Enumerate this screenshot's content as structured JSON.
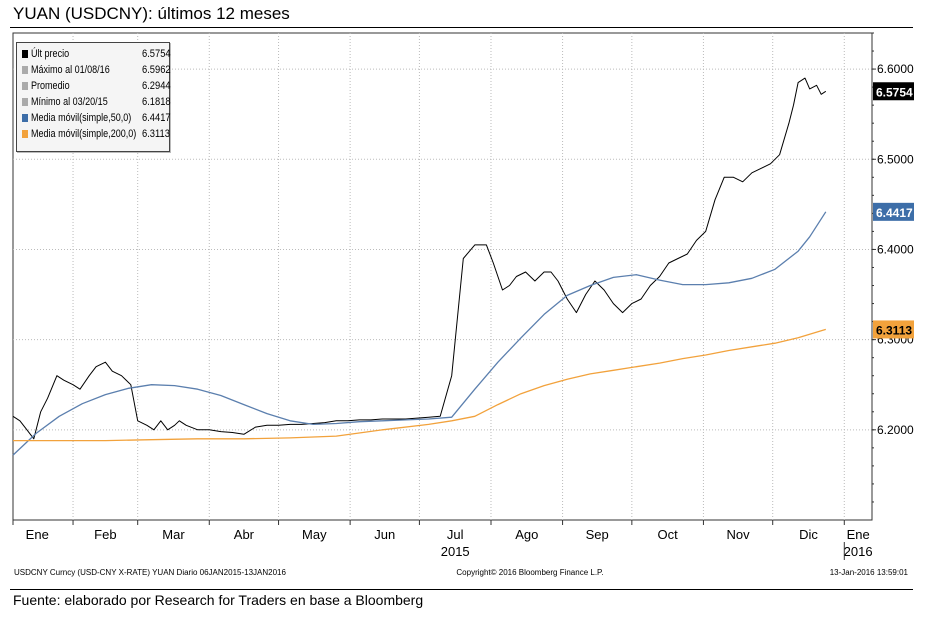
{
  "title": "YUAN (USDCNY): últimos 12 meses",
  "footer": "Fuente: elaborado por Research for Traders en base a Bloomberg",
  "bottom_left": "USDCNY Curncy (USD-CNY X-RATE) YUAN  Diario 06JAN2015-13JAN2016",
  "bottom_center": "Copyright© 2016 Bloomberg Finance L.P.",
  "bottom_right": "13-Jan-2016 13:59:01",
  "legend": [
    {
      "label": "Últ precio",
      "value": "6.5754",
      "color": "#000000"
    },
    {
      "label": "Máximo al 01/08/16",
      "value": "6.5962",
      "color": "#aaaaaa"
    },
    {
      "label": "Promedio",
      "value": "6.2944",
      "color": "#aaaaaa"
    },
    {
      "label": "Mínimo al 03/20/15",
      "value": "6.1818",
      "color": "#aaaaaa"
    },
    {
      "label": "Media móvil(simple,50,0)",
      "value": "6.4417",
      "color": "#3d6ea8"
    },
    {
      "label": "Media móvil(simple,200,0)",
      "value": "6.3113",
      "color": "#f2a23c"
    }
  ],
  "chart_data": {
    "type": "line",
    "title": "YUAN (USDCNY): últimos 12 meses",
    "xlabel": "",
    "ylabel": "",
    "x_start": "2015-01-06",
    "x_end": "2016-01-13",
    "ylim": [
      6.1,
      6.64
    ],
    "yticks": [
      6.2,
      6.3,
      6.4,
      6.5,
      6.6
    ],
    "ytick_labels": [
      "6.2000",
      "6.3000",
      "6.4000",
      "6.5000",
      "6.6000"
    ],
    "month_labels": [
      "Ene",
      "Feb",
      "Mar",
      "Abr",
      "May",
      "Jun",
      "Jul",
      "Ago",
      "Sep",
      "Oct",
      "Nov",
      "Dic",
      "Ene"
    ],
    "year_labels": [
      {
        "label": "2015",
        "month_index": 6
      },
      {
        "label": "2016",
        "month_index": 12
      }
    ],
    "series": [
      {
        "name": "Últ precio",
        "color": "#000000",
        "x": [
          0,
          3,
          6,
          9,
          12,
          15,
          19,
          22,
          26,
          29,
          33,
          36,
          40,
          43,
          47,
          51,
          54,
          58,
          61,
          64,
          67,
          70,
          72,
          75,
          80,
          85,
          90,
          95,
          100,
          105,
          110,
          115,
          120,
          125,
          130,
          135,
          140,
          145,
          150,
          155,
          160,
          165,
          170,
          175,
          180,
          185,
          190,
          195,
          200,
          205,
          208,
          212,
          215,
          218,
          222,
          226,
          230,
          233,
          236,
          240,
          244,
          248,
          252,
          256,
          260,
          264,
          268,
          272,
          276,
          280,
          284,
          288,
          292,
          296,
          300,
          304,
          308,
          312,
          316,
          320,
          324,
          328,
          332,
          336,
          338,
          340,
          343,
          345,
          348,
          350,
          352
        ],
        "values": [
          6.215,
          6.21,
          6.2,
          6.19,
          6.22,
          6.235,
          6.26,
          6.255,
          6.25,
          6.245,
          6.26,
          6.27,
          6.275,
          6.265,
          6.26,
          6.25,
          6.21,
          6.205,
          6.2,
          6.21,
          6.2,
          6.205,
          6.21,
          6.205,
          6.2,
          6.2,
          6.198,
          6.197,
          6.195,
          6.203,
          6.205,
          6.205,
          6.206,
          6.206,
          6.207,
          6.208,
          6.21,
          6.21,
          6.211,
          6.211,
          6.212,
          6.212,
          6.212,
          6.213,
          6.214,
          6.215,
          6.26,
          6.39,
          6.405,
          6.405,
          6.385,
          6.355,
          6.36,
          6.37,
          6.375,
          6.365,
          6.375,
          6.375,
          6.365,
          6.345,
          6.33,
          6.35,
          6.365,
          6.355,
          6.34,
          6.33,
          6.34,
          6.345,
          6.36,
          6.37,
          6.385,
          6.39,
          6.395,
          6.41,
          6.42,
          6.455,
          6.48,
          6.48,
          6.475,
          6.485,
          6.49,
          6.495,
          6.505,
          6.54,
          6.56,
          6.585,
          6.59,
          6.578,
          6.582,
          6.572,
          6.5754
        ]
      },
      {
        "name": "Media móvil(simple,50,0)",
        "color": "#5b7fae",
        "x": [
          0,
          10,
          20,
          30,
          40,
          50,
          60,
          70,
          80,
          90,
          100,
          110,
          120,
          130,
          140,
          150,
          160,
          170,
          180,
          190,
          200,
          210,
          220,
          230,
          240,
          250,
          260,
          270,
          280,
          290,
          300,
          310,
          320,
          330,
          340,
          345,
          352
        ],
        "values": [
          6.172,
          6.196,
          6.215,
          6.229,
          6.239,
          6.246,
          6.25,
          6.249,
          6.245,
          6.238,
          6.228,
          6.218,
          6.21,
          6.206,
          6.207,
          6.209,
          6.21,
          6.211,
          6.212,
          6.214,
          6.245,
          6.275,
          6.302,
          6.328,
          6.349,
          6.36,
          6.369,
          6.372,
          6.366,
          6.361,
          6.361,
          6.363,
          6.368,
          6.378,
          6.398,
          6.414,
          6.4417
        ]
      },
      {
        "name": "Media móvil(simple,200,0)",
        "color": "#f2a23c",
        "x": [
          0,
          20,
          40,
          60,
          80,
          100,
          120,
          140,
          160,
          180,
          190,
          200,
          210,
          220,
          230,
          240,
          250,
          260,
          270,
          280,
          290,
          300,
          310,
          320,
          330,
          340,
          352
        ],
        "values": [
          6.188,
          6.188,
          6.188,
          6.189,
          6.19,
          6.19,
          6.191,
          6.193,
          6.2,
          6.206,
          6.21,
          6.215,
          6.228,
          6.24,
          6.249,
          6.256,
          6.262,
          6.266,
          6.27,
          6.274,
          6.279,
          6.283,
          6.288,
          6.292,
          6.296,
          6.302,
          6.3113
        ]
      }
    ],
    "price_labels": [
      {
        "label": "6.5754",
        "value": 6.5754,
        "bg": "#000000",
        "fg": "#ffffff"
      },
      {
        "label": "6.4417",
        "value": 6.4417,
        "bg": "#3d6ea8",
        "fg": "#ffffff"
      },
      {
        "label": "6.3113",
        "value": 6.3113,
        "bg": "#f2a23c",
        "fg": "#000000"
      }
    ]
  }
}
